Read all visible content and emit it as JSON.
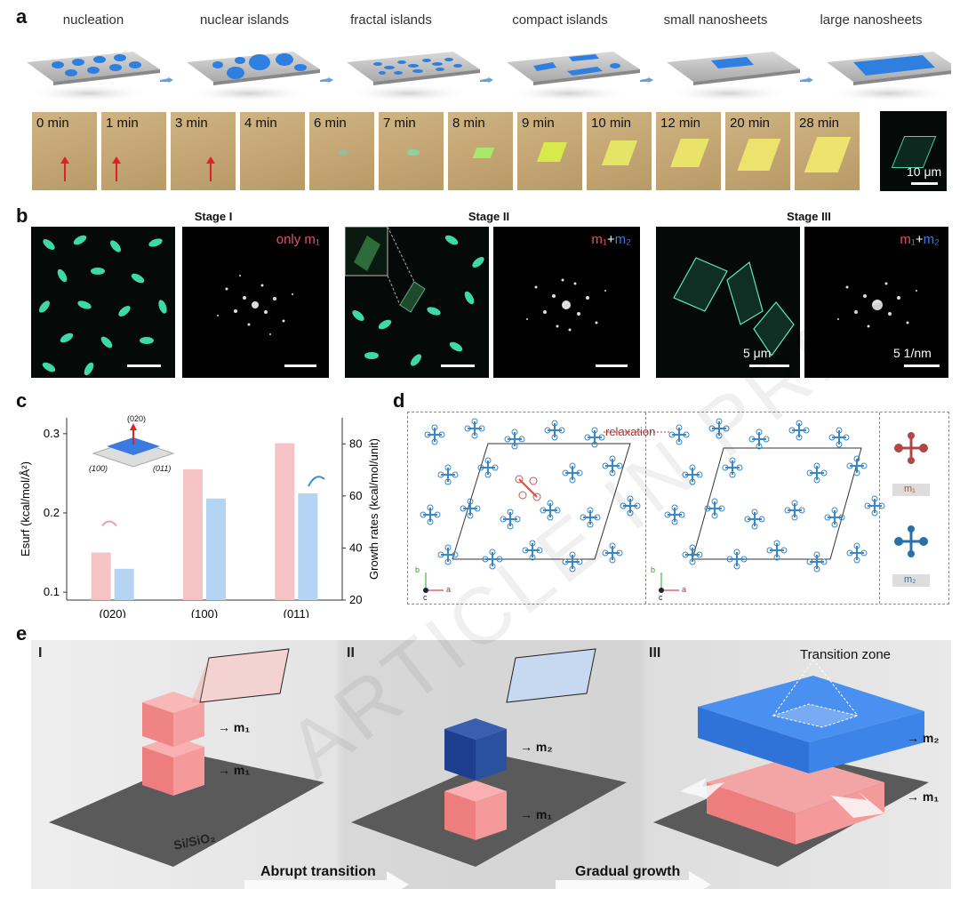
{
  "panel_a": {
    "letter": "a",
    "stages": [
      "nucleation",
      "nuclear islands",
      "fractal islands",
      "compact islands",
      "small nanosheets",
      "large nanosheets"
    ],
    "frames": [
      "0 min",
      "1 min",
      "3 min",
      "4 min",
      "6 min",
      "7 min",
      "8 min",
      "9 min",
      "10 min",
      "12 min",
      "20 min",
      "28 min"
    ],
    "scale": "10 μm"
  },
  "panel_b": {
    "letter": "b",
    "stage_titles": [
      "Stage I",
      "Stage II",
      "Stage III"
    ],
    "label_only": "only m₁",
    "label_m1": "m₁",
    "label_plus": "+",
    "label_m2": "m₂",
    "scale_real": "5 μm",
    "scale_recip": "5 1/nm"
  },
  "panel_c": {
    "letter": "c",
    "inset_labels": [
      "(020)",
      "(100)",
      "(011)"
    ]
  },
  "chart_data": {
    "type": "bar",
    "categories": [
      "(020)",
      "(100)",
      "(011)"
    ],
    "series": [
      {
        "name": "Esurf",
        "color": "#f5c3c3",
        "values": [
          0.15,
          0.255,
          0.288
        ]
      },
      {
        "name": "Growth rates",
        "color": "#b5d3f2",
        "values": [
          32,
          59,
          61
        ]
      }
    ],
    "ylabel": "Esurf (kcal/mol/Å²)",
    "ylabel_right": "Growth rates (kcal/mol/unit)",
    "ylim": [
      0.09,
      0.32
    ],
    "ylim_right": [
      20,
      90
    ],
    "yticks": [
      0.1,
      0.2,
      0.3
    ],
    "yticks_right": [
      20,
      40,
      60,
      80
    ]
  },
  "panel_d": {
    "letter": "d",
    "relaxation": "relaxation",
    "legend_m1": "m₁",
    "legend_m2": "m₂",
    "axis_b": "b",
    "axis_a": "a",
    "axis_c": "c"
  },
  "panel_e": {
    "letter": "e",
    "roman": [
      "I",
      "II",
      "III"
    ],
    "m1": "m₁",
    "m2": "m₂",
    "substrate": "Si/SiO₂",
    "transition_zone": "Transition zone",
    "abrupt": "Abrupt transition",
    "gradual": "Gradual growth"
  },
  "watermark": "ARTICLE IN PRESS",
  "colors": {
    "red": "#f08a8a",
    "blue": "#2f7fe0",
    "slab": "#bdbdbd",
    "micro_green": "#3fd8a8"
  }
}
